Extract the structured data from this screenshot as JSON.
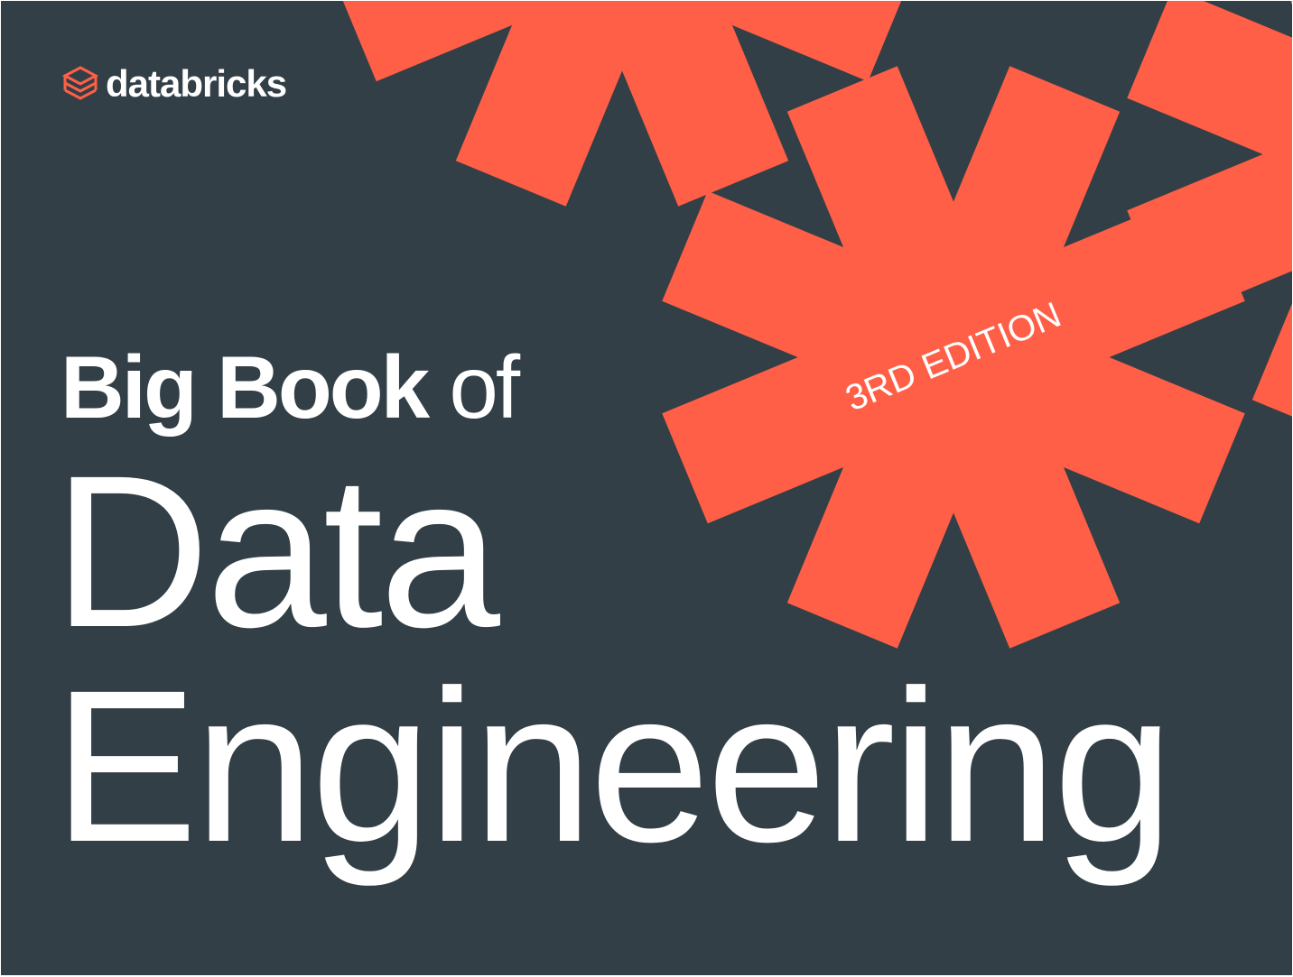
{
  "brand": {
    "name": "databricks",
    "logo_icon": "databricks-layers-icon"
  },
  "title": {
    "line1_bold": "Big Book",
    "line1_light": "of",
    "line2": "Data",
    "line3": "Engineering"
  },
  "badge": {
    "edition": "3RD EDITION"
  },
  "colors": {
    "background": "#323f46",
    "accent": "#ff5f46",
    "text": "#ffffff"
  }
}
